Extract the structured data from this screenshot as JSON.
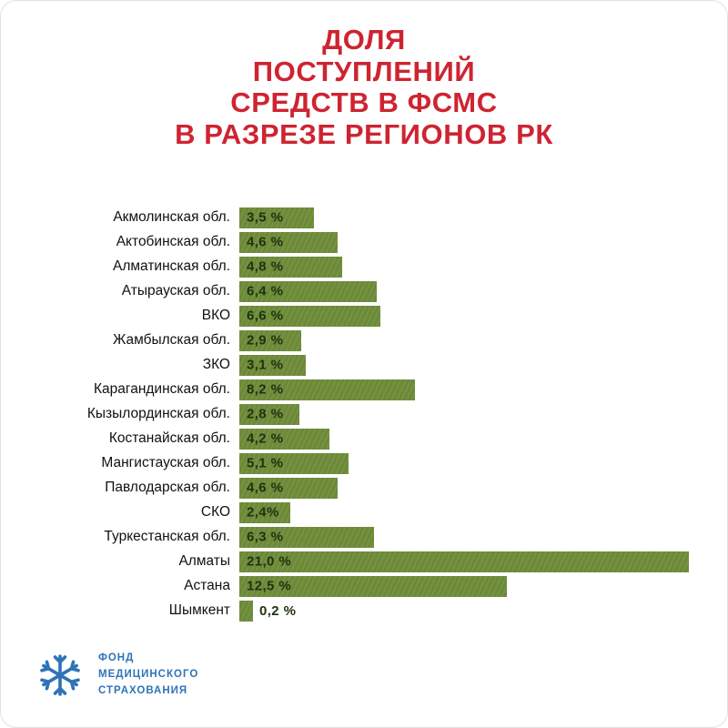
{
  "title": {
    "lines": [
      "ДОЛЯ",
      "ПОСТУПЛЕНИЙ",
      "СРЕДСТВ В ФСМС",
      "В РАЗРЕЗЕ РЕГИОНОВ РК"
    ]
  },
  "chart_data": {
    "type": "bar",
    "orientation": "horizontal",
    "title": "ДОЛЯ ПОСТУПЛЕНИЙ СРЕДСТВ В ФСМС В РАЗРЕЗЕ РЕГИОНОВ РК",
    "categories": [
      "Акмолинская обл.",
      "Актобинская обл.",
      "Алматинская обл.",
      "Атырауская обл.",
      "ВКО",
      "Жамбылская обл.",
      "ЗКО",
      "Карагандинская обл.",
      "Кызылординская обл.",
      "Костанайская обл.",
      "Мангистауская обл.",
      "Павлодарская обл.",
      "СКО",
      "Туркестанская обл.",
      "Алматы",
      "Астана",
      "Шымкент"
    ],
    "values": [
      3.5,
      4.6,
      4.8,
      6.4,
      6.6,
      2.9,
      3.1,
      8.2,
      2.8,
      4.2,
      5.1,
      4.6,
      2.4,
      6.3,
      21.0,
      12.5,
      0.2
    ],
    "value_labels": [
      "3,5 %",
      "4,6 %",
      "4,8 %",
      "6,4 %",
      "6,6 %",
      "2,9 %",
      "3,1 %",
      "8,2 %",
      "2,8 %",
      "4,2 %",
      "5,1 %",
      "4,6 %",
      "2,4%",
      "6,3 %",
      "21,0 %",
      "12,5 %",
      "0,2 %"
    ],
    "xlim": [
      0,
      21.6
    ],
    "grid": false,
    "legend": "none",
    "bar_color": "#6f8d3a",
    "value_text_color": "#203310",
    "title_color": "#ce2431"
  },
  "logo": {
    "lines": [
      "ФОНД",
      "МЕДИЦИНСКОГО",
      "СТРАХОВАНИЯ"
    ],
    "color": "#2e73b8",
    "icon": "snowflake-logo-icon"
  }
}
